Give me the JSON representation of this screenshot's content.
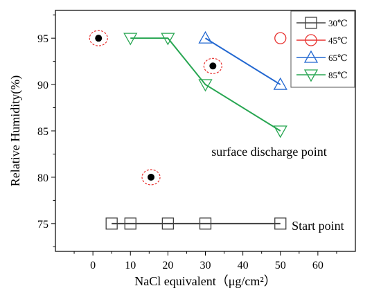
{
  "chart_data": {
    "type": "scatter",
    "title": "",
    "xlabel": "NaCl equivalent（μg/cm²）",
    "ylabel": "Relative Humidity(%)",
    "xlim": [
      -10,
      70
    ],
    "ylim": [
      72,
      98
    ],
    "x_ticks": [
      0,
      10,
      20,
      30,
      40,
      50,
      60
    ],
    "y_ticks": [
      75,
      80,
      85,
      90,
      95
    ],
    "grid": false,
    "legend_position": "top-right",
    "series": [
      {
        "name": "30℃",
        "marker": "square",
        "color": "#404040",
        "line": true,
        "points": [
          [
            5,
            75
          ],
          [
            10,
            75
          ],
          [
            20,
            75
          ],
          [
            30,
            75
          ],
          [
            50,
            75
          ]
        ]
      },
      {
        "name": "45℃",
        "marker": "circle",
        "color": "#e8312f",
        "line": false,
        "points": [
          [
            50,
            95
          ]
        ]
      },
      {
        "name": "65℃",
        "marker": "triangle-up",
        "color": "#2368d1",
        "line": true,
        "points": [
          [
            30,
            95
          ],
          [
            50,
            90
          ]
        ]
      },
      {
        "name": "85℃",
        "marker": "triangle-down",
        "color": "#28a652",
        "line": true,
        "points": [
          [
            10,
            95
          ],
          [
            20,
            95
          ],
          [
            30,
            90
          ],
          [
            50,
            85
          ]
        ]
      }
    ],
    "discharge_points": {
      "marker": "filled-dot-dashed-red-ring",
      "dot_color": "#000000",
      "ring_color": "#e8312f",
      "points": [
        [
          1.5,
          95
        ],
        [
          32,
          92
        ],
        [
          15.5,
          80
        ]
      ]
    },
    "annotations": [
      {
        "text": "surface discharge point",
        "at": [
          47,
          82.3
        ]
      },
      {
        "text": "Start point",
        "at": [
          60,
          74.3
        ]
      }
    ]
  }
}
